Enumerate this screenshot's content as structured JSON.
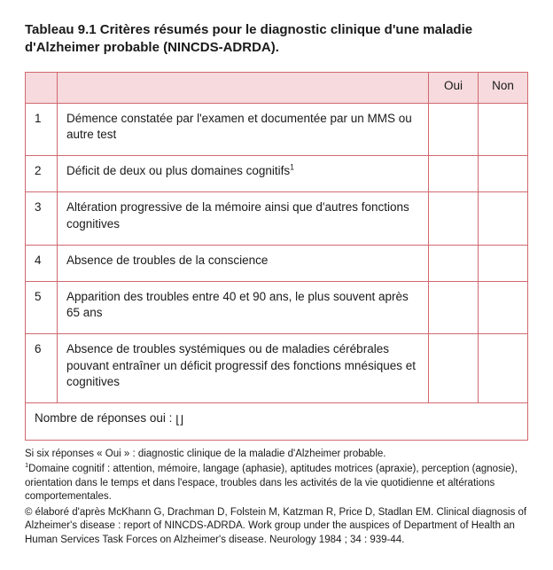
{
  "colors": {
    "header_fill": "#f6dadd",
    "border": "#d1696f"
  },
  "title": "Tableau 9.1  Critères résumés pour le diagnostic clinique d'une maladie d'Alzheimer probable (NINCDS-ADRDA).",
  "headers": {
    "blank1": "",
    "blank2": "",
    "oui": "Oui",
    "non": "Non"
  },
  "rows": [
    {
      "n": "1",
      "text": "Démence constatée par l'examen et documentée par un MMS ou autre test"
    },
    {
      "n": "2",
      "text": "Déficit de deux ou plus domaines cognitifs",
      "sup": "1"
    },
    {
      "n": "3",
      "text": "Altération progressive de la mémoire ainsi que d'autres fonctions cognitives"
    },
    {
      "n": "4",
      "text": "Absence de troubles de la conscience"
    },
    {
      "n": "5",
      "text": "Apparition des troubles entre 40 et 90 ans, le plus souvent après 65 ans"
    },
    {
      "n": "6",
      "text": "Absence de troubles systémiques ou de maladies cérébrales pouvant entraîner un déficit progressif des fonctions mnésiques et cognitives"
    }
  ],
  "footer_row": "Nombre de réponses oui : ",
  "footnotes": {
    "f1": "Si six réponses « Oui » : diagnostic clinique de la maladie d'Alzheimer probable.",
    "f2_sup": "1",
    "f2": "Domaine cognitif : attention, mémoire, langage (aphasie), aptitudes motrices (apraxie), perception (agnosie), orientation dans le temps et dans l'espace, troubles dans les activités de la vie quotidienne et altérations comportementales.",
    "f3": "© élaboré d'après McKhann G, Drachman D, Folstein M, Katzman R, Price D, Stadlan EM. Clinical diagnosis of Alzheimer's disease : report of NINCDS-ADRDA. Work group under the auspices of Department of Health an Human Services Task Forces on Alzheimer's disease. Neurology 1984 ; 34 : 939-44."
  }
}
